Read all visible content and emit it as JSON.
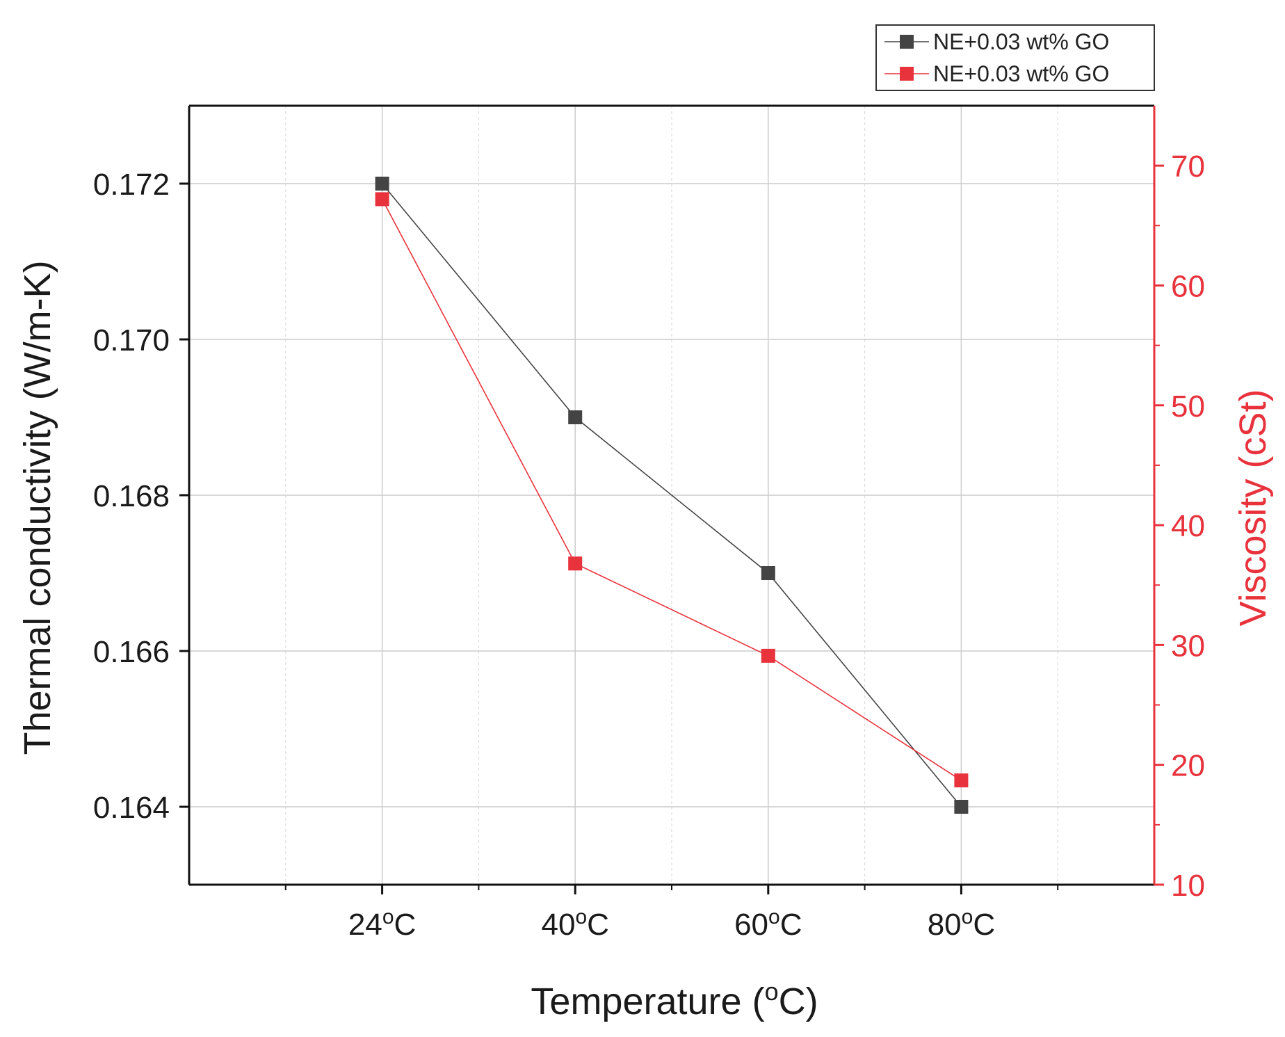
{
  "chart_data": {
    "type": "line",
    "categories": [
      "24°C",
      "40°C",
      "60°C",
      "80°C"
    ],
    "xlabel": {
      "prefix": "Temperature (",
      "sup": "o",
      "suffix": "C)"
    },
    "x_tick_labels": [
      {
        "num": "24",
        "sup": "o",
        "unit": "C"
      },
      {
        "num": "40",
        "sup": "o",
        "unit": "C"
      },
      {
        "num": "60",
        "sup": "o",
        "unit": "C"
      },
      {
        "num": "80",
        "sup": "o",
        "unit": "C"
      }
    ],
    "y_left": {
      "label": "Thermal conductivity (W/m-K)",
      "lim": [
        0.163,
        0.173
      ],
      "ticks": [
        0.164,
        0.166,
        0.168,
        0.17,
        0.172
      ],
      "tick_labels": [
        "0.164",
        "0.166",
        "0.168",
        "0.170",
        "0.172"
      ],
      "color": "#1a1a1a"
    },
    "y_right": {
      "label": "Viscosity (cSt)",
      "lim": [
        10,
        75
      ],
      "ticks": [
        10,
        20,
        30,
        40,
        50,
        60,
        70
      ],
      "tick_labels": [
        "10",
        "20",
        "30",
        "40",
        "50",
        "60",
        "70"
      ],
      "color": "#e8323c"
    },
    "series": [
      {
        "name": "NE+0.03 wt% GO",
        "axis": "left",
        "color": "#444444",
        "values": [
          0.172,
          0.169,
          0.167,
          0.164
        ]
      },
      {
        "name": "NE+0.03 wt% GO",
        "axis": "right",
        "color": "#e8323c",
        "values": [
          67.2,
          36.8,
          29.1,
          18.7
        ]
      }
    ],
    "legend": {
      "location": "top-right"
    },
    "grid": true
  }
}
